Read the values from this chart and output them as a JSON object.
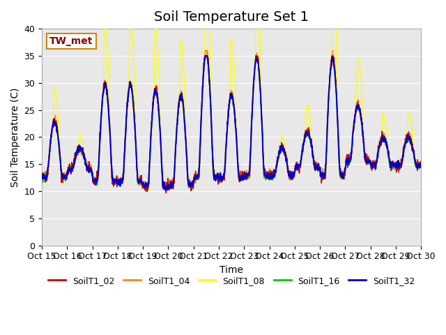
{
  "title": "Soil Temperature Set 1",
  "xlabel": "Time",
  "ylabel": "Soil Temperature (C)",
  "ylim": [
    0,
    40
  ],
  "xlim": [
    0,
    360
  ],
  "background_color": "#e8e8e8",
  "series_colors": {
    "SoilT1_02": "#cc0000",
    "SoilT1_04": "#ff8800",
    "SoilT1_08": "#ffff00",
    "SoilT1_16": "#00cc00",
    "SoilT1_32": "#0000cc"
  },
  "legend_labels": [
    "SoilT1_02",
    "SoilT1_04",
    "SoilT1_08",
    "SoilT1_16",
    "SoilT1_32"
  ],
  "annotation_text": "TW_met",
  "x_tick_labels": [
    "Oct 15",
    "Oct 16",
    "Oct 17",
    "Oct 18",
    "Oct 19",
    "Oct 20",
    "Oct 21",
    "Oct 22",
    "Oct 23",
    "Oct 24",
    "Oct 25",
    "Oct 26",
    "Oct 27",
    "Oct 28",
    "Oct 29",
    "Oct 30"
  ],
  "x_tick_positions": [
    0,
    24,
    48,
    72,
    96,
    120,
    144,
    168,
    192,
    216,
    240,
    264,
    288,
    312,
    336,
    360
  ],
  "yticks": [
    0,
    5,
    10,
    15,
    20,
    25,
    30,
    35,
    40
  ],
  "title_fontsize": 14,
  "axis_fontsize": 10,
  "tick_fontsize": 9
}
